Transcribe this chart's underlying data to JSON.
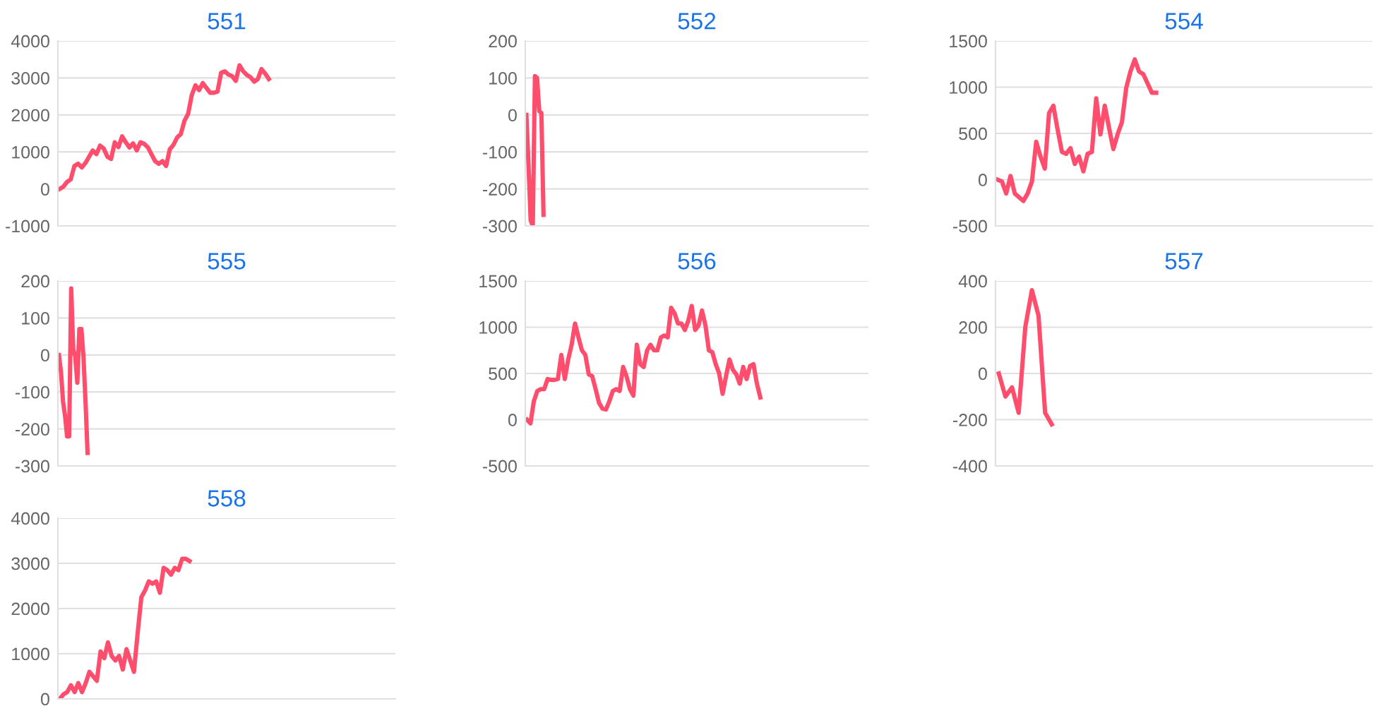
{
  "chart_data": [
    {
      "type": "line",
      "title": "551",
      "tick_labels": "y",
      "grid": "y",
      "marker": "none",
      "line_style": "solid",
      "legend": false,
      "categories": [
        null,
        null,
        null,
        null,
        null,
        null,
        null,
        null,
        null,
        null,
        null,
        null,
        null,
        null,
        null,
        null,
        null,
        null,
        null,
        null,
        null,
        null,
        null,
        null,
        null,
        null,
        null,
        null,
        null,
        null,
        null,
        null,
        null,
        null,
        null,
        null,
        null,
        null,
        null,
        null,
        null,
        null,
        null,
        null,
        null,
        null,
        null,
        null,
        null,
        null,
        null,
        null,
        null,
        null,
        null,
        null,
        null,
        null,
        null,
        null,
        null,
        null,
        null,
        null,
        null,
        null,
        null,
        null,
        null,
        null,
        null,
        null,
        null,
        null,
        null,
        null,
        null,
        null,
        null,
        null,
        null,
        null,
        null,
        null,
        null,
        null,
        null,
        null,
        null,
        null,
        null,
        null
      ],
      "ylim": [
        -1000,
        4000
      ],
      "yticks": [
        -1000,
        0,
        1000,
        2000,
        3000,
        4000
      ],
      "series": [
        {
          "color": "#ff4d6d",
          "values": [
            0,
            60,
            190,
            260,
            620,
            680,
            580,
            700,
            870,
            1040,
            940,
            1170,
            1090,
            870,
            810,
            1260,
            1130,
            1420,
            1260,
            1120,
            1230,
            1040,
            1260,
            1220,
            1130,
            940,
            750,
            680,
            750,
            620,
            1070,
            1190,
            1390,
            1480,
            1840,
            2030,
            2540,
            2800,
            2670,
            2860,
            2730,
            2600,
            2600,
            2630,
            3140,
            3180,
            3090,
            3050,
            2920,
            3340,
            3180,
            3080,
            3020,
            2900,
            2970,
            3240,
            3120,
            2970,
            null,
            null,
            null,
            null,
            null,
            null,
            null,
            null,
            null,
            null,
            null,
            null,
            null,
            null,
            null,
            null,
            null,
            null,
            null,
            null,
            null,
            null,
            null,
            null,
            null,
            null,
            null,
            null,
            null,
            null,
            null,
            null,
            null,
            null
          ]
        }
      ]
    },
    {
      "type": "line",
      "title": "555",
      "tick_labels": "y",
      "grid": "y",
      "marker": "none",
      "line_style": "solid",
      "legend": false,
      "categories": [
        null,
        null,
        null,
        null,
        null,
        null,
        null,
        null,
        null,
        null,
        null,
        null,
        null,
        null,
        null,
        null,
        null,
        null,
        null,
        null,
        null,
        null,
        null,
        null,
        null,
        null,
        null,
        null,
        null,
        null,
        null,
        null,
        null,
        null,
        null,
        null,
        null,
        null,
        null,
        null,
        null,
        null,
        null,
        null,
        null,
        null,
        null,
        null,
        null,
        null,
        null,
        null,
        null,
        null,
        null,
        null,
        null,
        null,
        null,
        null,
        null,
        null,
        null,
        null,
        null,
        null,
        null,
        null,
        null,
        null,
        null,
        null,
        null,
        null,
        null,
        null,
        null,
        null,
        null,
        null,
        null,
        null,
        null,
        null,
        null,
        null,
        null,
        null,
        null,
        null,
        null,
        null,
        null,
        null,
        null,
        null,
        null,
        null,
        null,
        null,
        null,
        null,
        null,
        null,
        null,
        null,
        null,
        null,
        null,
        null,
        null,
        null,
        null,
        null,
        null,
        null,
        null,
        null,
        null,
        null,
        null,
        null,
        null,
        null,
        null,
        null,
        null,
        null,
        null,
        null,
        null,
        null,
        null,
        null,
        null,
        null,
        null,
        null,
        null,
        null,
        null,
        null,
        null,
        null,
        null,
        null,
        null,
        null,
        null,
        null,
        null,
        null,
        null,
        null,
        null,
        null,
        null,
        null,
        null,
        null,
        null,
        null,
        null,
        null,
        null
      ],
      "ylim": [
        -300,
        200
      ],
      "yticks": [
        -300,
        -200,
        -100,
        0,
        100,
        200
      ],
      "series": [
        {
          "color": "#ff4d6d",
          "values": [
            0,
            -45,
            -125,
            -165,
            -220,
            -220,
            180,
            15,
            -5,
            -75,
            70,
            70,
            -5,
            -125,
            -265,
            null,
            null,
            null,
            null,
            null,
            null,
            null,
            null,
            null,
            null,
            null,
            null,
            null,
            null,
            null,
            null,
            null,
            null,
            null,
            null,
            null,
            null,
            null,
            null,
            null,
            null,
            null,
            null,
            null,
            null,
            null,
            null,
            null,
            null,
            null,
            null,
            null,
            null,
            null,
            null,
            null,
            null,
            null,
            null,
            null,
            null,
            null,
            null,
            null,
            null,
            null,
            null,
            null,
            null,
            null,
            null,
            null,
            null,
            null,
            null,
            null,
            null,
            null,
            null,
            null,
            null,
            null,
            null,
            null,
            null,
            null,
            null,
            null,
            null,
            null,
            null,
            null,
            null,
            null,
            null,
            null,
            null,
            null,
            null,
            null,
            null,
            null,
            null,
            null,
            null,
            null,
            null,
            null,
            null,
            null,
            null,
            null,
            null,
            null,
            null,
            null,
            null,
            null,
            null,
            null,
            null,
            null,
            null,
            null,
            null,
            null,
            null,
            null,
            null,
            null,
            null,
            null,
            null,
            null,
            null,
            null,
            null,
            null,
            null,
            null,
            null,
            null,
            null,
            null,
            null,
            null,
            null,
            null,
            null,
            null,
            null,
            null,
            null,
            null,
            null,
            null,
            null,
            null,
            null,
            null,
            null,
            null,
            null,
            null,
            null
          ]
        }
      ]
    },
    {
      "type": "line",
      "title": "558",
      "tick_labels": "y",
      "grid": "y",
      "marker": "none",
      "line_style": "solid",
      "legend": false,
      "categories": [
        null,
        null,
        null,
        null,
        null,
        null,
        null,
        null,
        null,
        null,
        null,
        null,
        null,
        null,
        null,
        null,
        null,
        null,
        null,
        null,
        null,
        null,
        null,
        null,
        null,
        null,
        null,
        null,
        null,
        null,
        null,
        null,
        null,
        null,
        null,
        null,
        null,
        null,
        null,
        null,
        null,
        null,
        null,
        null,
        null,
        null,
        null,
        null,
        null,
        null,
        null,
        null,
        null,
        null,
        null,
        null,
        null,
        null,
        null,
        null,
        null,
        null,
        null,
        null,
        null,
        null,
        null,
        null,
        null,
        null,
        null,
        null,
        null,
        null,
        null,
        null,
        null,
        null,
        null,
        null,
        null,
        null,
        null,
        null,
        null,
        null,
        null,
        null,
        null,
        null,
        null
      ],
      "ylim": [
        0,
        4000
      ],
      "yticks": [
        0,
        1000,
        2000,
        3000,
        4000
      ],
      "series": [
        {
          "color": "#ff4d6d",
          "values": [
            0,
            100,
            150,
            300,
            150,
            350,
            150,
            350,
            600,
            500,
            400,
            1050,
            900,
            1250,
            950,
            850,
            950,
            650,
            1100,
            850,
            600,
            1450,
            2250,
            2400,
            2600,
            2550,
            2600,
            2350,
            2900,
            2850,
            2750,
            2900,
            2850,
            3100,
            3100,
            3050,
            null,
            null,
            null,
            null,
            null,
            null,
            null,
            null,
            null,
            null,
            null,
            null,
            null,
            null,
            null,
            null,
            null,
            null,
            null,
            null,
            null,
            null,
            null,
            null,
            null,
            null,
            null,
            null,
            null,
            null,
            null,
            null,
            null,
            null,
            null,
            null,
            null,
            null,
            null,
            null,
            null,
            null,
            null,
            null,
            null,
            null,
            null,
            null,
            null,
            null,
            null,
            null,
            null,
            null,
            null
          ]
        }
      ]
    },
    {
      "type": "line",
      "title": "552",
      "tick_labels": "y",
      "grid": "y",
      "marker": "none",
      "line_style": "solid",
      "legend": false,
      "categories": [
        null,
        null,
        null,
        null,
        null,
        null,
        null,
        null,
        null,
        null,
        null,
        null,
        null,
        null,
        null,
        null,
        null,
        null,
        null,
        null,
        null,
        null,
        null,
        null,
        null,
        null,
        null,
        null,
        null,
        null,
        null,
        null,
        null,
        null,
        null,
        null,
        null,
        null,
        null,
        null,
        null,
        null,
        null,
        null,
        null,
        null,
        null,
        null,
        null,
        null,
        null,
        null,
        null,
        null,
        null,
        null,
        null,
        null,
        null,
        null,
        null,
        null,
        null,
        null,
        null,
        null,
        null,
        null,
        null,
        null,
        null,
        null,
        null,
        null,
        null,
        null,
        null,
        null,
        null,
        null,
        null,
        null,
        null,
        null,
        null,
        null,
        null,
        null,
        null,
        null,
        null,
        null,
        null,
        null,
        null,
        null,
        null,
        null,
        null,
        null,
        null,
        null,
        null,
        null,
        null,
        null,
        null,
        null,
        null,
        null,
        null,
        null,
        null,
        null,
        null,
        null,
        null,
        null,
        null,
        null,
        null,
        null,
        null,
        null,
        null,
        null,
        null,
        null,
        null,
        null,
        null,
        null,
        null,
        null,
        null,
        null,
        null,
        null,
        null,
        null,
        null,
        null,
        null,
        null,
        null,
        null,
        null,
        null,
        null,
        null,
        null,
        null,
        null,
        null,
        null,
        null,
        null,
        null,
        null,
        null
      ],
      "ylim": [
        -300,
        200
      ],
      "yticks": [
        -300,
        -200,
        -100,
        0,
        100,
        200
      ],
      "series": [
        {
          "color": "#ff4d6d",
          "values": [
            0,
            -135,
            -285,
            -300,
            105,
            100,
            10,
            5,
            -270,
            null,
            null,
            null,
            null,
            null,
            null,
            null,
            null,
            null,
            null,
            null,
            null,
            null,
            null,
            null,
            null,
            null,
            null,
            null,
            null,
            null,
            null,
            null,
            null,
            null,
            null,
            null,
            null,
            null,
            null,
            null,
            null,
            null,
            null,
            null,
            null,
            null,
            null,
            null,
            null,
            null,
            null,
            null,
            null,
            null,
            null,
            null,
            null,
            null,
            null,
            null,
            null,
            null,
            null,
            null,
            null,
            null,
            null,
            null,
            null,
            null,
            null,
            null,
            null,
            null,
            null,
            null,
            null,
            null,
            null,
            null,
            null,
            null,
            null,
            null,
            null,
            null,
            null,
            null,
            null,
            null,
            null,
            null,
            null,
            null,
            null,
            null,
            null,
            null,
            null,
            null,
            null,
            null,
            null,
            null,
            null,
            null,
            null,
            null,
            null,
            null,
            null,
            null,
            null,
            null,
            null,
            null,
            null,
            null,
            null,
            null,
            null,
            null,
            null,
            null,
            null,
            null,
            null,
            null,
            null,
            null,
            null,
            null,
            null,
            null,
            null,
            null,
            null,
            null,
            null,
            null,
            null,
            null,
            null,
            null,
            null,
            null,
            null,
            null,
            null,
            null,
            null,
            null,
            null,
            null,
            null,
            null,
            null,
            null,
            null,
            null
          ]
        }
      ]
    },
    {
      "type": "line",
      "title": "556",
      "tick_labels": "y",
      "grid": "y",
      "marker": "none",
      "line_style": "solid",
      "legend": false,
      "categories": [
        null,
        null,
        null,
        null,
        null,
        null,
        null,
        null,
        null,
        null,
        null,
        null,
        null,
        null,
        null,
        null,
        null,
        null,
        null,
        null,
        null,
        null,
        null,
        null,
        null,
        null,
        null,
        null,
        null,
        null,
        null,
        null,
        null,
        null,
        null,
        null,
        null,
        null,
        null,
        null,
        null,
        null,
        null,
        null,
        null,
        null,
        null,
        null,
        null,
        null,
        null,
        null,
        null,
        null,
        null,
        null,
        null,
        null,
        null,
        null,
        null,
        null,
        null,
        null,
        null,
        null,
        null,
        null,
        null,
        null,
        null,
        null,
        null,
        null,
        null,
        null,
        null,
        null,
        null,
        null,
        null,
        null,
        null,
        null,
        null,
        null,
        null,
        null,
        null,
        null,
        null,
        null,
        null,
        null,
        null,
        null,
        null,
        null,
        null,
        null
      ],
      "ylim": [
        -500,
        1500
      ],
      "yticks": [
        -500,
        0,
        500,
        1000,
        1500
      ],
      "series": [
        {
          "color": "#ff4d6d",
          "values": [
            0,
            -40,
            200,
            310,
            330,
            330,
            440,
            430,
            430,
            440,
            700,
            440,
            650,
            810,
            1040,
            890,
            750,
            700,
            490,
            470,
            330,
            180,
            120,
            110,
            200,
            310,
            330,
            310,
            570,
            470,
            330,
            260,
            810,
            600,
            570,
            750,
            810,
            750,
            750,
            890,
            910,
            890,
            1210,
            1150,
            1040,
            1040,
            970,
            1070,
            1230,
            970,
            1020,
            1180,
            1020,
            750,
            730,
            600,
            500,
            280,
            470,
            650,
            540,
            490,
            390,
            570,
            440,
            580,
            600,
            390,
            240,
            null,
            null,
            null,
            null,
            null,
            null,
            null,
            null,
            null,
            null,
            null,
            null,
            null,
            null,
            null,
            null,
            null,
            null,
            null,
            null,
            null,
            null,
            null,
            null,
            null,
            null,
            null,
            null,
            null,
            null,
            null
          ]
        }
      ]
    },
    {
      "type": "line",
      "title": "554",
      "tick_labels": "y",
      "grid": "y",
      "marker": "none",
      "line_style": "solid",
      "legend": false,
      "categories": [
        null,
        null,
        null,
        null,
        null,
        null,
        null,
        null,
        null,
        null,
        null,
        null,
        null,
        null,
        null,
        null,
        null,
        null,
        null,
        null,
        null,
        null,
        null,
        null,
        null,
        null,
        null,
        null,
        null,
        null,
        null,
        null,
        null,
        null,
        null,
        null,
        null,
        null,
        null,
        null,
        null,
        null,
        null,
        null,
        null,
        null,
        null,
        null,
        null,
        null,
        null,
        null,
        null,
        null,
        null,
        null,
        null,
        null,
        null,
        null,
        null,
        null,
        null,
        null,
        null,
        null,
        null,
        null,
        null,
        null,
        null,
        null,
        null,
        null,
        null,
        null,
        null,
        null,
        null,
        null,
        null,
        null,
        null,
        null,
        null,
        null,
        null,
        null
      ],
      "ylim": [
        -500,
        1500
      ],
      "yticks": [
        -500,
        0,
        500,
        1000,
        1500
      ],
      "series": [
        {
          "color": "#ff4d6d",
          "values": [
            0,
            -20,
            -150,
            40,
            -150,
            -190,
            -230,
            -150,
            -20,
            410,
            250,
            120,
            720,
            800,
            540,
            300,
            280,
            340,
            170,
            250,
            90,
            280,
            300,
            880,
            490,
            800,
            560,
            330,
            490,
            620,
            990,
            1170,
            1300,
            1170,
            1140,
            1040,
            940,
            940,
            null,
            null,
            null,
            null,
            null,
            null,
            null,
            null,
            null,
            null,
            null,
            null,
            null,
            null,
            null,
            null,
            null,
            null,
            null,
            null,
            null,
            null,
            null,
            null,
            null,
            null,
            null,
            null,
            null,
            null,
            null,
            null,
            null,
            null,
            null,
            null,
            null,
            null,
            null,
            null,
            null,
            null,
            null,
            null,
            null,
            null,
            null,
            null,
            null,
            null
          ]
        }
      ]
    },
    {
      "type": "line",
      "title": "557",
      "tick_labels": "y",
      "grid": "y",
      "marker": "none",
      "line_style": "solid",
      "legend": false,
      "categories": [
        null,
        null,
        null,
        null,
        null,
        null,
        null,
        null,
        null,
        null,
        null,
        null,
        null,
        null,
        null,
        null,
        null,
        null,
        null,
        null,
        null,
        null,
        null,
        null,
        null,
        null,
        null,
        null,
        null,
        null,
        null,
        null,
        null,
        null,
        null,
        null,
        null,
        null,
        null,
        null,
        null,
        null,
        null,
        null,
        null,
        null,
        null,
        null,
        null,
        null,
        null,
        null,
        null,
        null,
        null,
        null,
        null
      ],
      "ylim": [
        -400,
        400
      ],
      "yticks": [
        -400,
        -200,
        0,
        200,
        400
      ],
      "series": [
        {
          "color": "#ff4d6d",
          "values": [
            0,
            -100,
            -60,
            -170,
            200,
            360,
            250,
            -170,
            -220,
            null,
            null,
            null,
            null,
            null,
            null,
            null,
            null,
            null,
            null,
            null,
            null,
            null,
            null,
            null,
            null,
            null,
            null,
            null,
            null,
            null,
            null,
            null,
            null,
            null,
            null,
            null,
            null,
            null,
            null,
            null,
            null,
            null,
            null,
            null,
            null,
            null,
            null,
            null,
            null,
            null,
            null,
            null,
            null,
            null,
            null,
            null,
            null
          ]
        }
      ]
    }
  ]
}
